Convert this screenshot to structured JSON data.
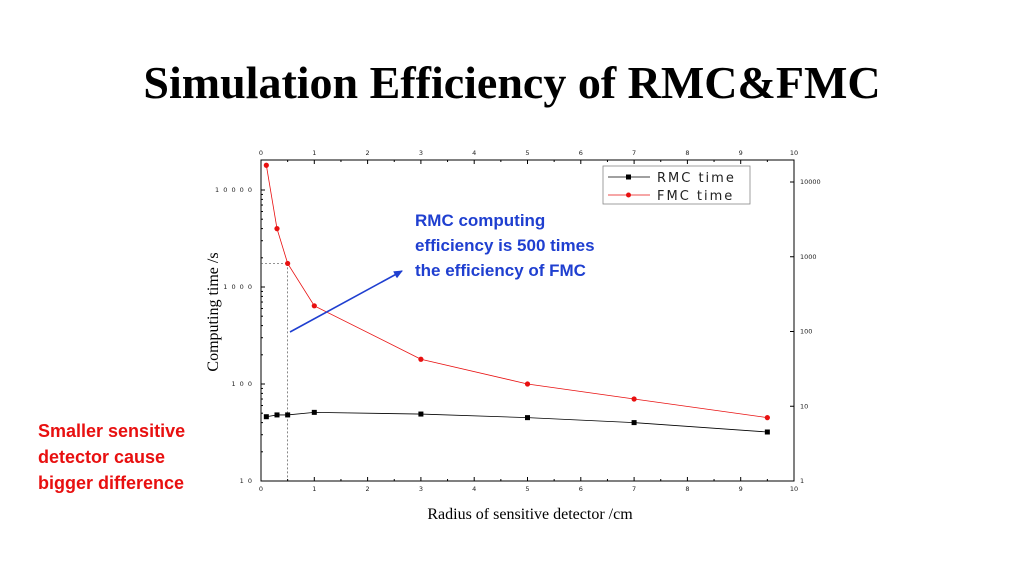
{
  "title": "Simulation Efficiency of RMC&FMC",
  "annotation": {
    "lines": [
      "RMC computing",
      "efficiency is 500 times",
      "the efficiency of FMC"
    ],
    "color": "#1f3fd0"
  },
  "side_note": {
    "lines": [
      "Smaller sensitive",
      "detector cause",
      "bigger difference"
    ],
    "color": "#e81010"
  },
  "chart_data": {
    "type": "line",
    "title": "",
    "xlabel": "Radius of sensitive detector /cm",
    "ylabel": "Computing time /s",
    "xlim": [
      0,
      10
    ],
    "ylim": [
      10,
      20000
    ],
    "yscale": "log",
    "x_ticks": [
      "0",
      "1",
      "2",
      "3",
      "4",
      "5",
      "6",
      "7",
      "8",
      "9",
      "10"
    ],
    "y_ticks_left": [
      "10",
      "100",
      "1000",
      "10000"
    ],
    "y_ticks_right": [
      "1",
      "10",
      "100",
      "1000",
      "10000"
    ],
    "legend_position": "top-right",
    "series": [
      {
        "name": "RMC  time",
        "color": "#000000",
        "marker": "square",
        "x": [
          0.1,
          0.3,
          0.5,
          1,
          3,
          5,
          7,
          9.5
        ],
        "y": [
          46,
          48,
          48,
          51,
          49,
          45,
          40,
          32
        ]
      },
      {
        "name": "FMC  time",
        "color": "#e81010",
        "marker": "circle",
        "x": [
          0.1,
          0.3,
          0.5,
          1,
          3,
          5,
          7,
          9.5
        ],
        "y": [
          18000,
          4000,
          1750,
          640,
          180,
          100,
          70,
          45
        ]
      }
    ]
  }
}
